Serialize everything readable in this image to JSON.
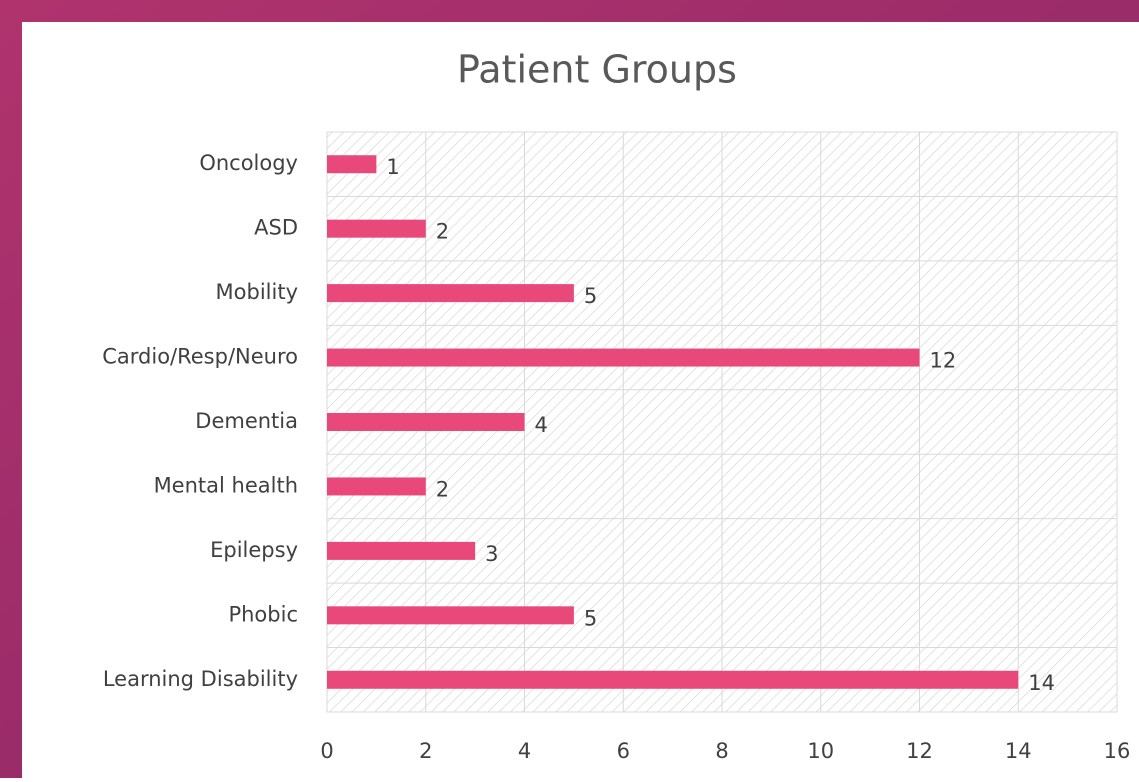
{
  "chart_data": {
    "type": "hbar",
    "title": "Patient Groups",
    "categories": [
      "Oncology",
      "ASD",
      "Mobility",
      "Cardio/Resp/Neuro",
      "Dementia",
      "Mental health",
      "Epilepsy",
      "Phobic",
      "Learning Disability"
    ],
    "values": [
      1,
      2,
      5,
      12,
      4,
      2,
      3,
      5,
      14
    ],
    "color": "#e8497a",
    "xlim": [
      0,
      16
    ],
    "xticks": [
      0,
      2,
      4,
      6,
      8,
      10,
      12,
      14,
      16
    ],
    "grid": true
  }
}
